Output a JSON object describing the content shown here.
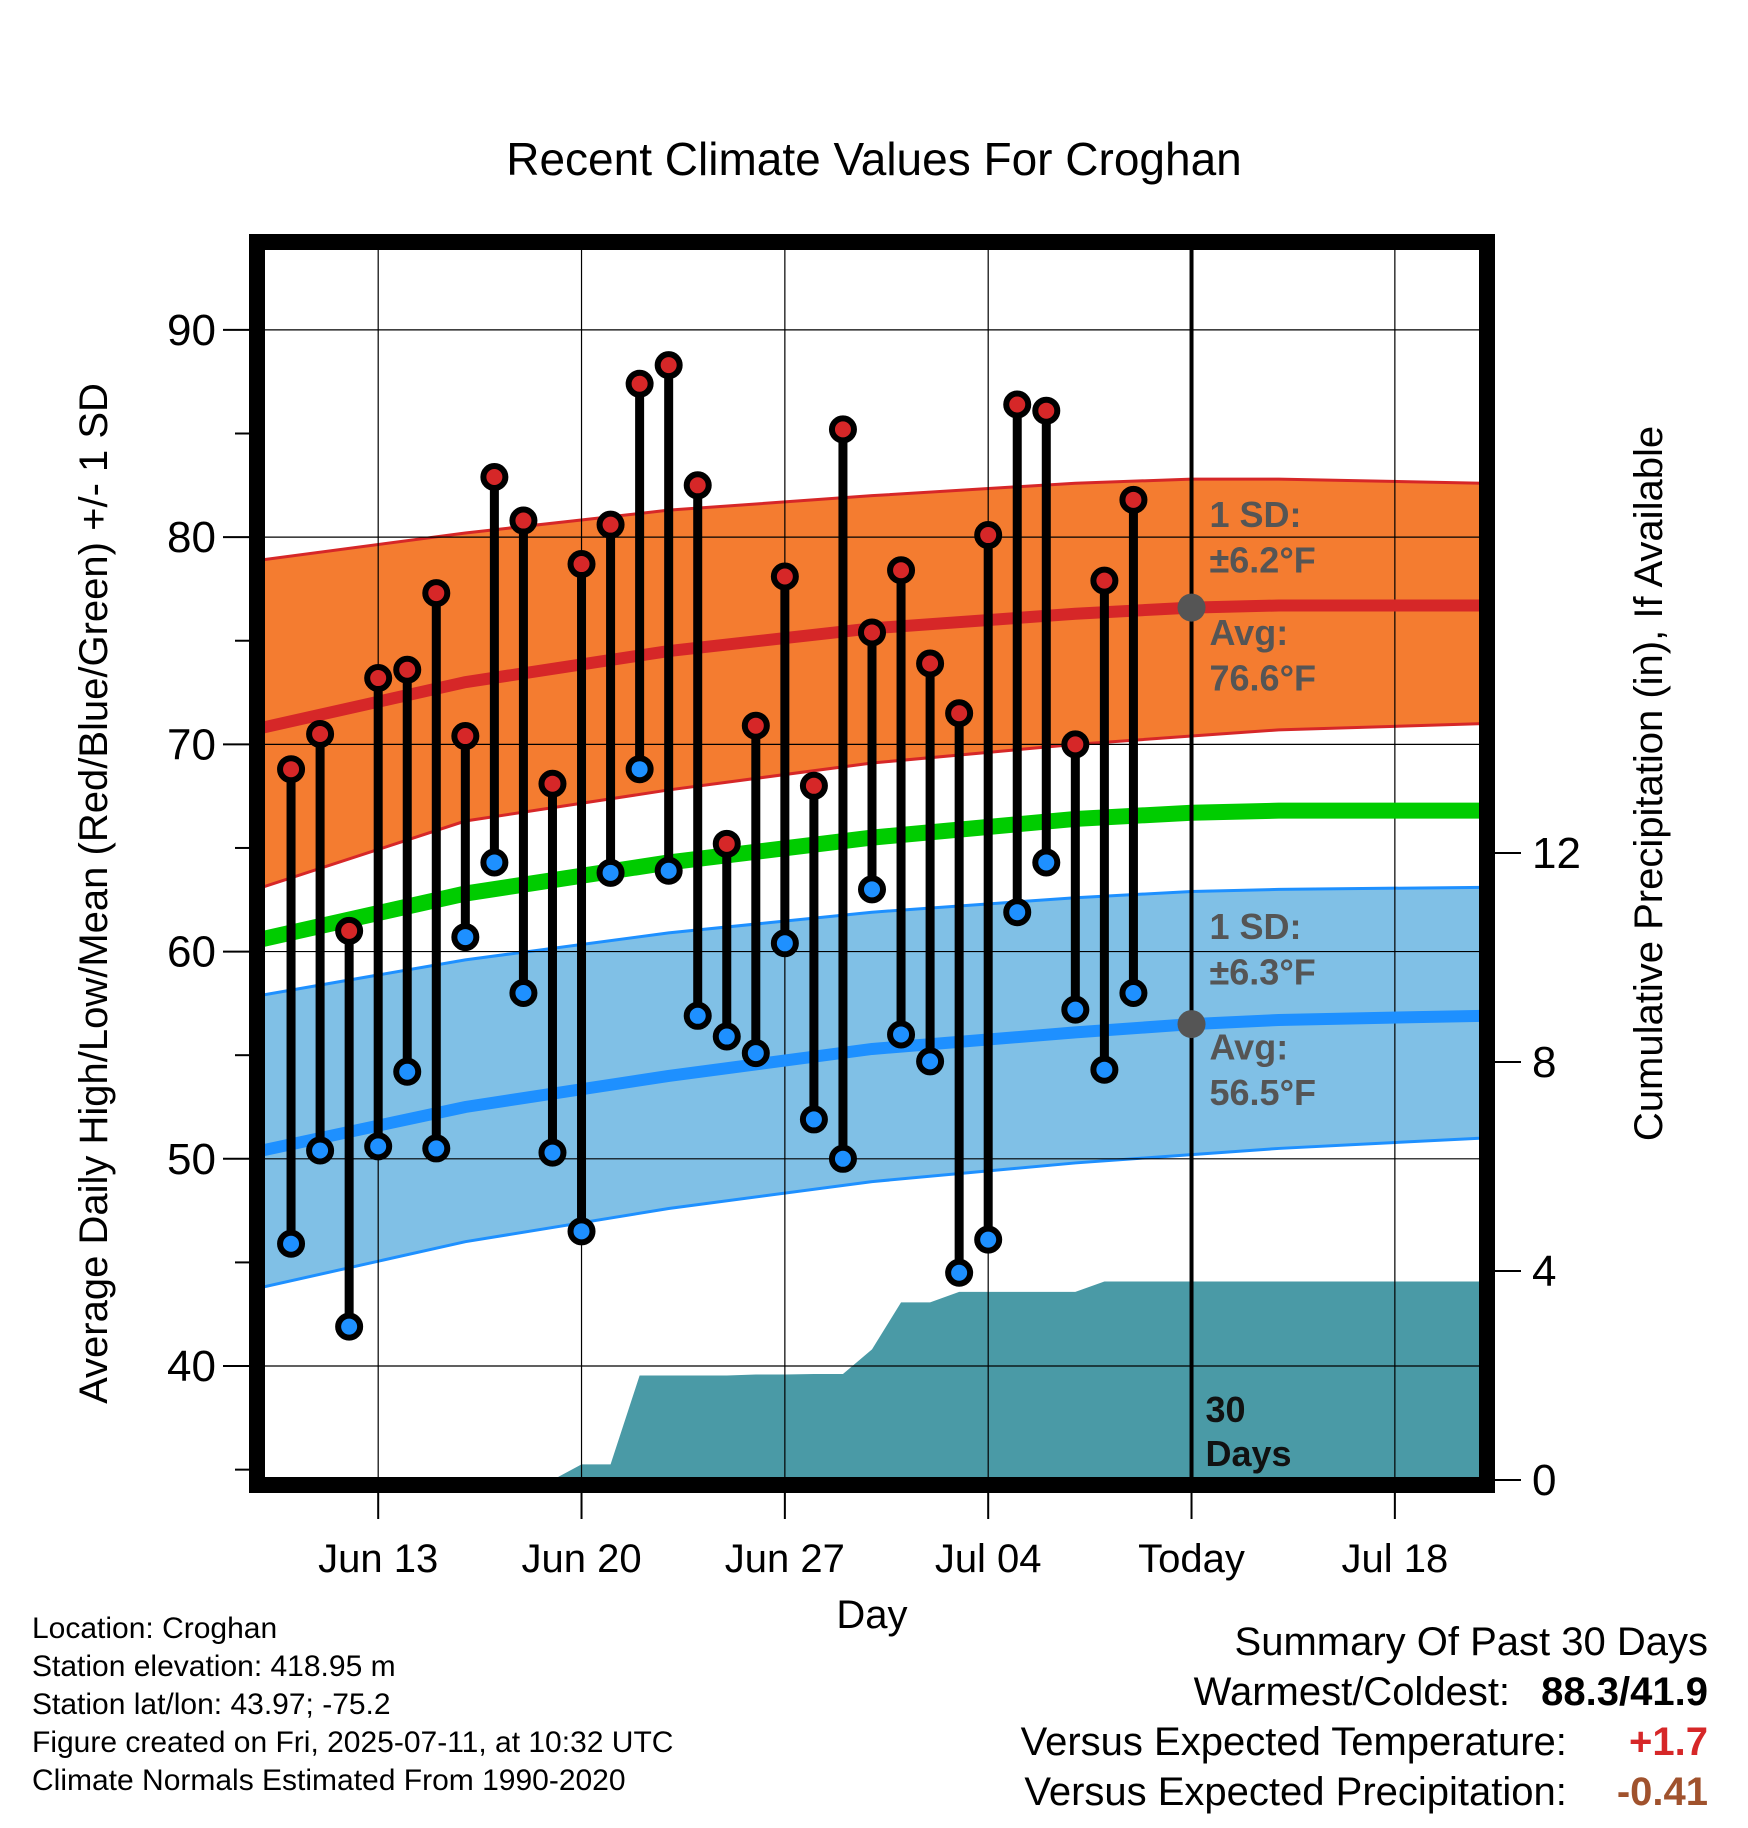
{
  "chart_data": {
    "type": "line",
    "title": "Recent Climate Values For Croghan",
    "xlabel": "Day",
    "ylabel": "Average Daily High/Low/Mean (Red/Blue/Green) +/- 1 SD",
    "y2label": "Cumulative Precipitation (in), If Available",
    "ylim": [
      34.5,
      94
    ],
    "y2lim": [
      0,
      23.6
    ],
    "xlim": [
      "2025-06-09",
      "2025-07-21"
    ],
    "yticks": [
      40,
      50,
      60,
      70,
      80,
      90
    ],
    "y2ticks": [
      0,
      4,
      8,
      12
    ],
    "xticks": [
      {
        "date": "2025-06-13",
        "label": "Jun 13"
      },
      {
        "date": "2025-06-20",
        "label": "Jun 20"
      },
      {
        "date": "2025-06-27",
        "label": "Jun 27"
      },
      {
        "date": "2025-07-04",
        "label": "Jul 04"
      },
      {
        "date": "2025-07-11",
        "label": "Today"
      },
      {
        "date": "2025-07-18",
        "label": "Jul 18"
      }
    ],
    "today": "2025-07-11",
    "grid": true,
    "colors": {
      "high": "#d62728",
      "high_band": "#f47c30",
      "low": "#1e90ff",
      "low_band": "#80c0e6",
      "mean": "#00cc00",
      "precip": "#4a9aa6"
    },
    "daily": {
      "dates": [
        "2025-06-10",
        "2025-06-11",
        "2025-06-12",
        "2025-06-13",
        "2025-06-14",
        "2025-06-15",
        "2025-06-16",
        "2025-06-17",
        "2025-06-18",
        "2025-06-19",
        "2025-06-20",
        "2025-06-21",
        "2025-06-22",
        "2025-06-23",
        "2025-06-24",
        "2025-06-25",
        "2025-06-26",
        "2025-06-27",
        "2025-06-28",
        "2025-06-29",
        "2025-06-30",
        "2025-07-01",
        "2025-07-02",
        "2025-07-03",
        "2025-07-04",
        "2025-07-05",
        "2025-07-06",
        "2025-07-07",
        "2025-07-08",
        "2025-07-09",
        "2025-07-10"
      ],
      "high": [
        68.8,
        70.5,
        61.0,
        73.2,
        73.6,
        77.3,
        70.4,
        82.9,
        80.8,
        68.1,
        78.7,
        80.6,
        87.4,
        88.3,
        82.5,
        65.2,
        70.9,
        78.1,
        68.0,
        85.2,
        75.4,
        78.4,
        73.9,
        71.5,
        80.1,
        86.4,
        86.1,
        70.0,
        77.9,
        81.8,
        null
      ],
      "low": [
        45.9,
        50.4,
        41.9,
        50.6,
        54.2,
        50.5,
        60.7,
        64.3,
        58.0,
        50.3,
        46.5,
        63.8,
        68.8,
        63.9,
        56.9,
        55.9,
        55.1,
        60.4,
        51.9,
        50.0,
        63.0,
        56.0,
        54.7,
        44.5,
        46.1,
        61.9,
        64.3,
        57.2,
        54.3,
        58.0,
        null
      ]
    },
    "normals": {
      "dates": [
        "2025-06-09",
        "2025-06-16",
        "2025-06-23",
        "2025-06-30",
        "2025-07-07",
        "2025-07-11",
        "2025-07-14",
        "2025-07-21"
      ],
      "high_avg": [
        70.8,
        73.0,
        74.5,
        75.6,
        76.3,
        76.6,
        76.7,
        76.7
      ],
      "low_avg": [
        50.4,
        52.5,
        54.0,
        55.3,
        56.1,
        56.5,
        56.7,
        56.9
      ],
      "mean_avg": [
        60.6,
        62.8,
        64.3,
        65.5,
        66.4,
        66.7,
        66.8,
        66.8
      ],
      "high_upper": [
        78.9,
        80.2,
        81.3,
        82.0,
        82.6,
        82.8,
        82.8,
        82.6
      ],
      "high_lower": [
        63.1,
        66.3,
        67.8,
        69.1,
        70.0,
        70.4,
        70.7,
        71.0
      ],
      "low_upper": [
        57.9,
        59.6,
        60.9,
        61.9,
        62.6,
        62.9,
        63.0,
        63.1
      ],
      "low_lower": [
        43.8,
        46.0,
        47.6,
        48.9,
        49.8,
        50.2,
        50.5,
        51.0
      ]
    },
    "precip": {
      "dates": [
        "2025-06-09",
        "2025-06-18",
        "2025-06-19",
        "2025-06-20",
        "2025-06-21",
        "2025-06-22",
        "2025-06-23",
        "2025-06-24",
        "2025-06-25",
        "2025-06-26",
        "2025-06-27",
        "2025-06-28",
        "2025-06-29",
        "2025-06-30",
        "2025-07-01",
        "2025-07-02",
        "2025-07-03",
        "2025-07-04",
        "2025-07-05",
        "2025-07-06",
        "2025-07-07",
        "2025-07-08",
        "2025-07-11",
        "2025-07-21"
      ],
      "values": [
        0,
        0,
        0,
        0.3,
        0.3,
        2.0,
        2.0,
        2.0,
        2.0,
        2.02,
        2.02,
        2.03,
        2.03,
        2.5,
        3.4,
        3.4,
        3.6,
        3.6,
        3.6,
        3.6,
        3.6,
        3.8,
        3.8,
        3.8
      ]
    },
    "annotations": {
      "high_sd": [
        "1 SD:",
        "±6.2°F"
      ],
      "high_avg": [
        "Avg:",
        "76.6°F"
      ],
      "low_sd": [
        "1 SD:",
        "±6.3°F"
      ],
      "low_avg": [
        "Avg:",
        "56.5°F"
      ],
      "window": [
        "30",
        "Days"
      ]
    }
  },
  "info": {
    "location": "Location: Croghan",
    "elevation": "Station elevation: 418.95 m",
    "latlon": "Station lat/lon: 43.97; -75.2",
    "created": "Figure created on Fri, 2025-07-11, at 10:32 UTC",
    "normals": "Climate Normals Estimated From 1990-2020"
  },
  "summary": {
    "title": "Summary Of Past 30 Days",
    "warm_cold_label": "Warmest/Coldest:",
    "warm_cold_value": "88.3/41.9",
    "temp_label": "Versus Expected Temperature:",
    "temp_value": "+1.7",
    "temp_color": "#d62728",
    "precip_label": "Versus Expected Precipitation:",
    "precip_value": "-0.41",
    "precip_color": "#a0522d"
  }
}
